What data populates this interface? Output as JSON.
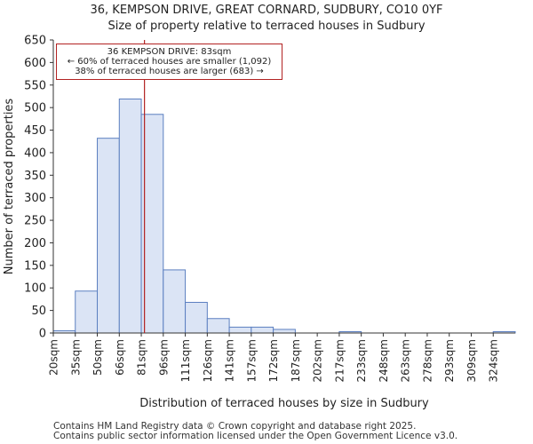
{
  "chart_data": {
    "type": "bar",
    "title": "36, KEMPSON DRIVE, GREAT CORNARD, SUDBURY, CO10 0YF",
    "subtitle": "Size of property relative to terraced houses in Sudbury",
    "xlabel": "Distribution of terraced houses by size in Sudbury",
    "ylabel": "Number of terraced properties",
    "categories": [
      "20sqm",
      "35sqm",
      "50sqm",
      "66sqm",
      "81sqm",
      "96sqm",
      "111sqm",
      "126sqm",
      "141sqm",
      "157sqm",
      "172sqm",
      "187sqm",
      "202sqm",
      "217sqm",
      "233sqm",
      "248sqm",
      "263sqm",
      "278sqm",
      "293sqm",
      "309sqm",
      "324sqm"
    ],
    "values": [
      5,
      93,
      432,
      519,
      485,
      140,
      68,
      32,
      13,
      13,
      8,
      0,
      0,
      3,
      0,
      0,
      0,
      0,
      0,
      0,
      3
    ],
    "bin_start": 20,
    "bin_width": 15.2,
    "ylim": [
      0,
      650
    ],
    "yticks": [
      0,
      50,
      100,
      150,
      200,
      250,
      300,
      350,
      400,
      450,
      500,
      550,
      600,
      650
    ],
    "marker": {
      "value": 83,
      "color": "#b22222",
      "annotation": {
        "line1": "36 KEMPSON DRIVE: 83sqm",
        "line2": "← 60% of terraced houses are smaller (1,092)",
        "line3": "38% of terraced houses are larger (683) →"
      }
    },
    "colors": {
      "bar_fill": "#dbe4f5",
      "bar_edge": "#5b7fc0",
      "axis": "#333333"
    }
  },
  "footer": {
    "line1": "Contains HM Land Registry data © Crown copyright and database right 2025.",
    "line2": "Contains public sector information licensed under the Open Government Licence v3.0."
  }
}
